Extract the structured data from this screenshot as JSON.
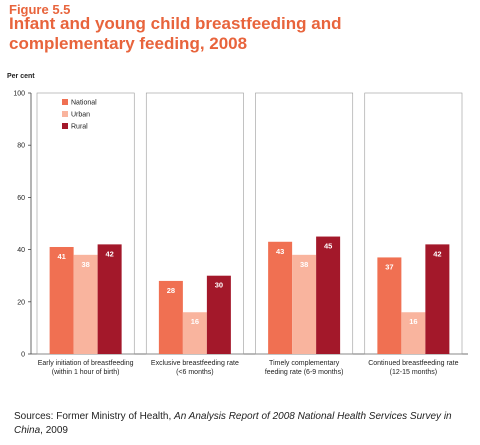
{
  "figure": {
    "label": "Figure 5.5",
    "title": "Infant and young child breastfeeding and complementary feeding, 2008"
  },
  "source": {
    "prefix": "Sources: Former Ministry of Health,",
    "italic": "An Analysis Report of 2008 National Health Services Survey in China",
    "suffix": ", 2009"
  },
  "colors": {
    "title": "#e8643c",
    "national": "#f07052",
    "urban": "#f9b49e",
    "rural": "#a3182a"
  },
  "chart_data": {
    "type": "bar",
    "title": "",
    "ylabel": "Per cent",
    "xlabel": "",
    "ylim": [
      0,
      100
    ],
    "yticks": [
      0,
      20,
      40,
      60,
      80,
      100
    ],
    "grid": false,
    "legend_position": "top-left",
    "categories": [
      [
        "Early initiation of breastfeeding",
        "(within 1 hour of birth)"
      ],
      [
        "Exclusive breastfeeding rate",
        "(<6 months)"
      ],
      [
        "Timely complementary",
        "feeding rate (6-9 months)"
      ],
      [
        "Continued breastfeeding rate",
        "(12-15 months)"
      ]
    ],
    "series": [
      {
        "name": "National",
        "color": "#f07052",
        "values": [
          41,
          28,
          43,
          37
        ]
      },
      {
        "name": "Urban",
        "color": "#f9b49e",
        "values": [
          38,
          16,
          38,
          16
        ]
      },
      {
        "name": "Rural",
        "color": "#a3182a",
        "values": [
          42,
          30,
          45,
          42
        ]
      }
    ]
  }
}
